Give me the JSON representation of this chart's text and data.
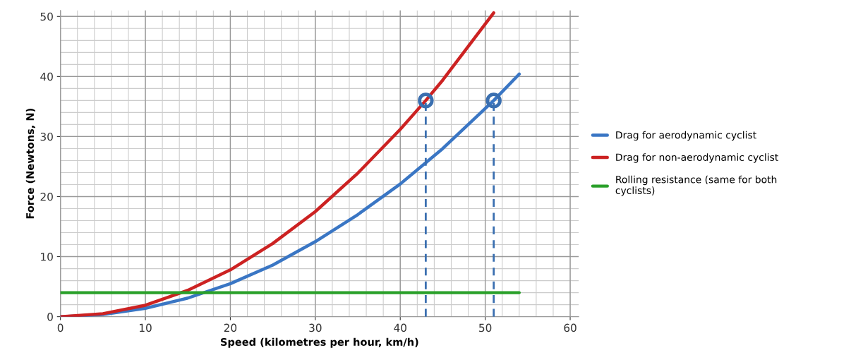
{
  "chart_data": {
    "type": "line",
    "xlabel": "Speed (kilometres per hour, km/h)",
    "ylabel": "Force (Newtons, N)",
    "xlim": [
      0,
      61
    ],
    "ylim": [
      0,
      51
    ],
    "xticks": [
      0,
      10,
      20,
      30,
      40,
      50,
      60
    ],
    "yticks": [
      0,
      10,
      20,
      30,
      40,
      50
    ],
    "grid": true,
    "legend": "right",
    "marker": "none",
    "line_style": "solid",
    "series": [
      {
        "name": "Drag for aerodynamic cyclist",
        "color": "#3a76c4",
        "x": [
          0,
          5,
          10,
          15,
          20,
          25,
          30,
          35,
          40,
          45,
          51,
          54
        ],
        "values": [
          0,
          0.35,
          1.4,
          3.1,
          5.5,
          8.6,
          12.5,
          17,
          22.1,
          28,
          36,
          40.4
        ]
      },
      {
        "name": "Drag for non-aerodynamic cyclist",
        "color": "#cc2222",
        "x": [
          0,
          5,
          10,
          15,
          20,
          25,
          30,
          35,
          40,
          43,
          45,
          51
        ],
        "values": [
          0,
          0.5,
          1.9,
          4.4,
          7.8,
          12.2,
          17.5,
          23.9,
          31.2,
          36,
          39.4,
          50.6
        ]
      },
      {
        "name": "Rolling resistance (same for both\ncyclists)",
        "color": "#2aa02a",
        "x": [
          0,
          54
        ],
        "values": [
          4,
          4
        ]
      },
      {
        "type": "scatter",
        "color": "#3a6fb0",
        "marker": "circle",
        "x": [
          43,
          51
        ],
        "values": [
          36,
          36
        ]
      },
      {
        "color": "#3a6fb0",
        "line_style": "dashed",
        "x": [
          43,
          43
        ],
        "values": [
          0,
          36
        ]
      },
      {
        "color": "#3a6fb0",
        "line_style": "dashed",
        "x": [
          51,
          51
        ],
        "values": [
          0,
          36
        ]
      }
    ]
  }
}
